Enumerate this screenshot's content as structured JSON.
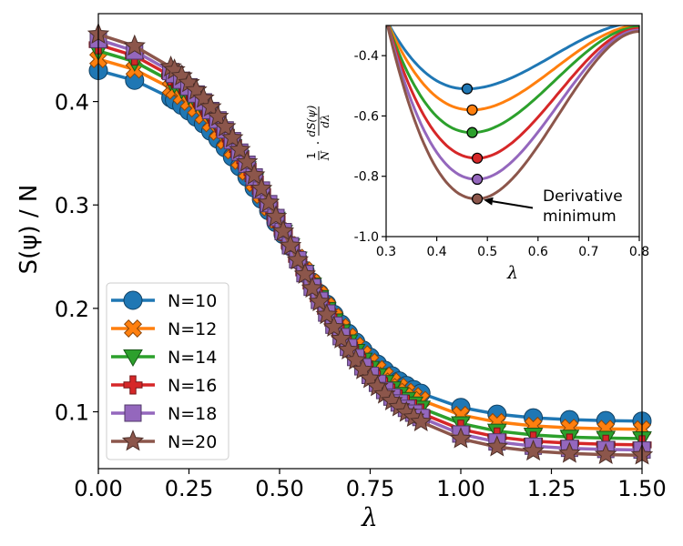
{
  "chart_data": [
    {
      "type": "line",
      "xlabel": "λ",
      "ylabel": "S(ψ) / N",
      "xlim": [
        0.0,
        1.5
      ],
      "ylim": [
        0.045,
        0.485
      ],
      "xticks": [
        "0.00",
        "0.25",
        "0.50",
        "0.75",
        "1.00",
        "1.25",
        "1.50"
      ],
      "yticks": [
        "0.1",
        "0.2",
        "0.3",
        "0.4"
      ],
      "legend_position": "lower-left",
      "series": [
        {
          "name": "N=10",
          "color": "#1f77b4",
          "marker": "circle",
          "plateau": 0.43,
          "x0": 0.52,
          "w": 0.15,
          "tail": 0.091
        },
        {
          "name": "N=12",
          "color": "#ff7f0e",
          "marker": "x",
          "plateau": 0.441,
          "x0": 0.52,
          "w": 0.15,
          "tail": 0.083
        },
        {
          "name": "N=14",
          "color": "#2ca02c",
          "marker": "triangle-down",
          "plateau": 0.449,
          "x0": 0.52,
          "w": 0.15,
          "tail": 0.074
        },
        {
          "name": "N=16",
          "color": "#d62728",
          "marker": "plus",
          "plateau": 0.455,
          "x0": 0.52,
          "w": 0.15,
          "tail": 0.068
        },
        {
          "name": "N=18",
          "color": "#9467bd",
          "marker": "square",
          "plateau": 0.46,
          "x0": 0.52,
          "w": 0.15,
          "tail": 0.063
        },
        {
          "name": "N=20",
          "color": "#8c564b",
          "marker": "star",
          "plateau": 0.465,
          "x0": 0.52,
          "w": 0.15,
          "tail": 0.058
        }
      ]
    },
    {
      "type": "line",
      "title": "inset",
      "xlabel": "λ",
      "ylabel_parts": {
        "frac1_num": "1",
        "frac1_den": "N",
        "dot": "·",
        "frac2_num": "dS(ψ)",
        "frac2_den": "dλ"
      },
      "xlim": [
        0.3,
        0.8
      ],
      "ylim": [
        -1.0,
        -0.3
      ],
      "xticks": [
        "0.3",
        "0.4",
        "0.5",
        "0.6",
        "0.7",
        "0.8"
      ],
      "yticks": [
        "-1.0",
        "-0.8",
        "-0.6",
        "-0.4"
      ],
      "minima": [
        {
          "name": "N=10",
          "x": 0.46,
          "y": -0.51
        },
        {
          "name": "N=12",
          "x": 0.47,
          "y": -0.58
        },
        {
          "name": "N=14",
          "x": 0.47,
          "y": -0.655
        },
        {
          "name": "N=16",
          "x": 0.48,
          "y": -0.74
        },
        {
          "name": "N=18",
          "x": 0.48,
          "y": -0.81
        },
        {
          "name": "N=20",
          "x": 0.48,
          "y": -0.875
        }
      ],
      "curve_start_y": -0.28,
      "curve_end_y": [
        -0.29,
        -0.3,
        -0.305,
        -0.31,
        -0.315,
        -0.32
      ],
      "annotation": {
        "line1": "Derivative",
        "line2": "minimum",
        "arrow_to": [
          0.48,
          -0.875
        ],
        "arrow_from": [
          0.595,
          -0.905
        ]
      }
    }
  ]
}
